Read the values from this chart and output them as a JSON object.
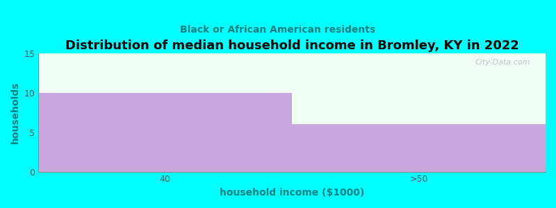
{
  "categories": [
    "40",
    ">50"
  ],
  "values": [
    10,
    6
  ],
  "bar_color": "#C8A8DC",
  "plot_bg_color": "#F0FFF4",
  "fig_bg_color": "#00FFFF",
  "title": "Distribution of median household income in Bromley, KY in 2022",
  "subtitle": "Black or African American residents",
  "xlabel": "household income ($1000)",
  "ylabel": "households",
  "ylim": [
    0,
    15
  ],
  "yticks": [
    0,
    5,
    10,
    15
  ],
  "title_fontsize": 13,
  "subtitle_fontsize": 10,
  "label_fontsize": 10,
  "tick_fontsize": 9,
  "title_color": "#000000",
  "subtitle_color": "#008080",
  "label_color": "#008080",
  "watermark": "City-Data.com"
}
